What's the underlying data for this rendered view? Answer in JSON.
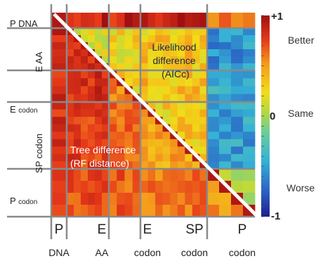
{
  "chart_data": {
    "type": "heatmap",
    "row_labels": [
      {
        "main": "P",
        "suffix": "DNA"
      },
      {
        "main": "E AA",
        "suffix": ""
      },
      {
        "main": "E",
        "suffix": "codon"
      },
      {
        "main": "SP codon",
        "suffix": ""
      },
      {
        "main": "P",
        "suffix": "codon"
      }
    ],
    "col_labels_top": [
      "P",
      "E",
      "E",
      "SP",
      "P"
    ],
    "col_labels_bottom": [
      "DNA",
      "AA",
      "codon",
      "codon",
      "codon"
    ],
    "group_sizes": [
      1,
      6,
      4,
      9,
      4
    ],
    "upper_triangle_label": [
      "Likelihood",
      "difference",
      "(AICc)"
    ],
    "lower_triangle_label": [
      "Tree difference",
      "(RF distance)"
    ],
    "colorbar": {
      "ticks": [
        "+1",
        "0",
        "-1"
      ],
      "descriptions": [
        "Better",
        "Same",
        "Worse"
      ],
      "range": [
        -1,
        1
      ],
      "colors": [
        "#22229a",
        "#2c6fd0",
        "#33b0d4",
        "#66cca0",
        "#a5d64a",
        "#e6d820",
        "#f5a31c",
        "#e8411a",
        "#a01414"
      ]
    },
    "group_means": {
      "lower": [
        [
          0.8,
          0.0,
          0.0,
          0.0,
          0.0
        ],
        [
          0.85,
          0.78,
          0.0,
          0.0,
          0.0
        ],
        [
          0.8,
          0.82,
          0.55,
          0.0,
          0.0
        ],
        [
          0.78,
          0.75,
          0.62,
          0.45,
          0.0
        ],
        [
          0.72,
          0.7,
          0.66,
          0.6,
          0.48
        ]
      ],
      "upper": [
        [
          0.0,
          0.9,
          0.85,
          0.85,
          0.6
        ],
        [
          0.0,
          0.2,
          0.25,
          0.32,
          -0.55
        ],
        [
          0.0,
          0.0,
          0.3,
          0.35,
          -0.45
        ],
        [
          0.0,
          0.0,
          0.0,
          0.3,
          -0.5
        ],
        [
          0.0,
          0.0,
          0.0,
          0.0,
          0.05
        ]
      ]
    }
  }
}
